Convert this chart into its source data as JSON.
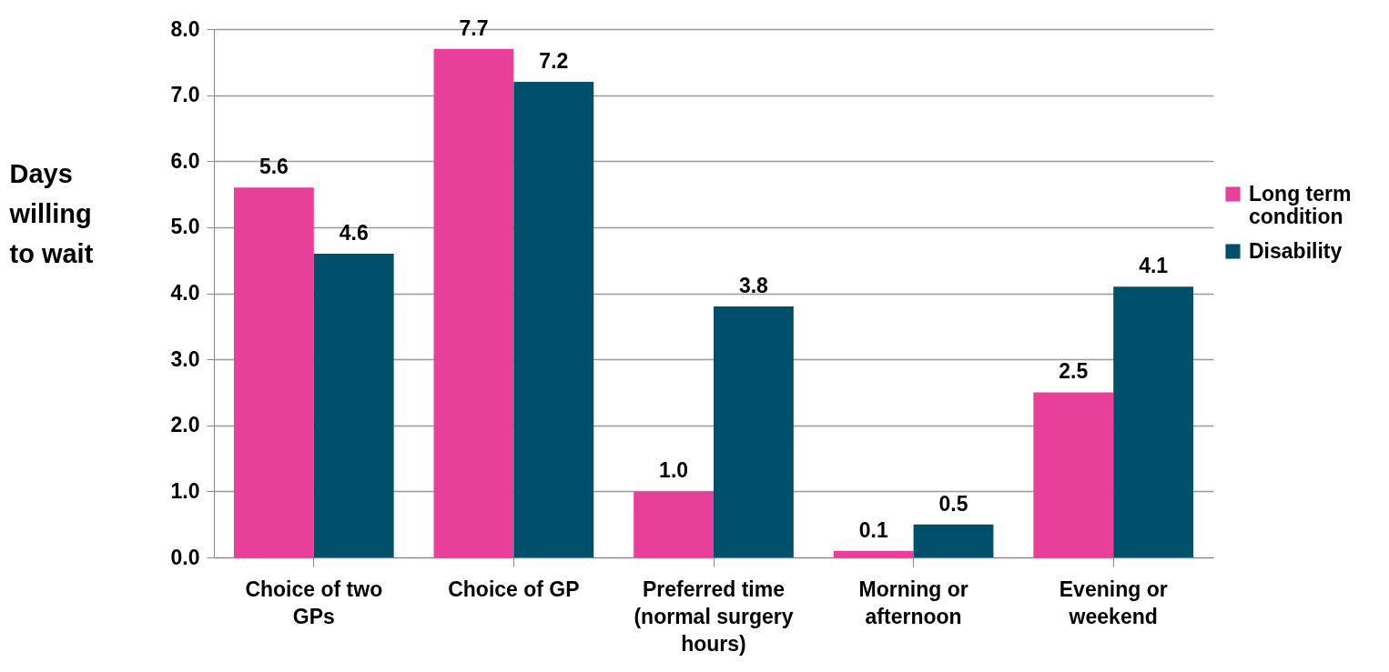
{
  "chart_data": {
    "type": "bar",
    "ylabel": "Days willing to wait",
    "categories": [
      "Choice of two GPs",
      "Choice of GP",
      "Preferred time (normal surgery hours)",
      "Morning or afternoon",
      "Evening or weekend"
    ],
    "series": [
      {
        "name": "Long term condition",
        "color": "#e8409a",
        "values": [
          5.6,
          7.7,
          1.0,
          0.1,
          2.5
        ],
        "value_labels": [
          "5.6",
          "7.7",
          "1.0",
          "0.1",
          "2.5"
        ]
      },
      {
        "name": "Disability",
        "color": "#00506b",
        "values": [
          4.6,
          7.2,
          3.8,
          0.5,
          4.1
        ],
        "value_labels": [
          "4.6",
          "7.2",
          "3.8",
          "0.5",
          "4.1"
        ]
      }
    ],
    "ylim": [
      0,
      8
    ],
    "yticks": [
      {
        "value": 0,
        "label": "0.0"
      },
      {
        "value": 1,
        "label": "1.0"
      },
      {
        "value": 2,
        "label": "2.0"
      },
      {
        "value": 3,
        "label": "3.0"
      },
      {
        "value": 4,
        "label": "4.0"
      },
      {
        "value": 5,
        "label": "5.0"
      },
      {
        "value": 6,
        "label": "6.0"
      },
      {
        "value": 7,
        "label": "7.0"
      },
      {
        "value": 8,
        "label": "8.0"
      }
    ],
    "grid": "y",
    "legend": "right"
  }
}
